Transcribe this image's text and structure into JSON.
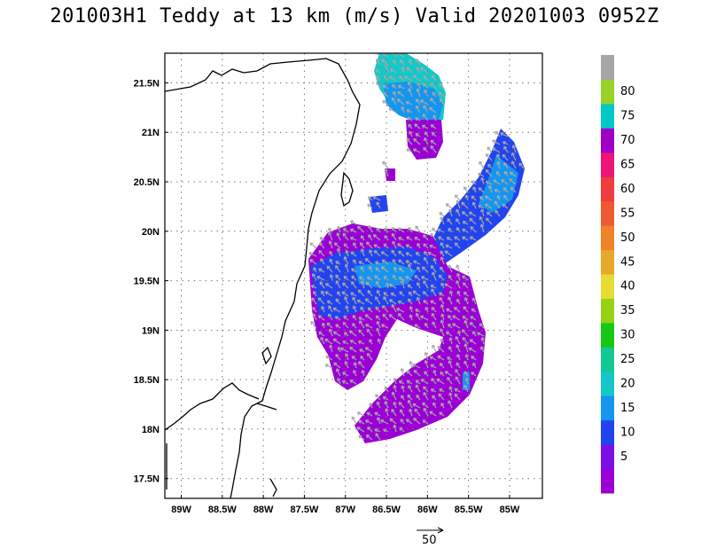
{
  "title": "201003H1 Teddy at 13 km (m/s) Valid 20201003 0952Z",
  "map": {
    "lon_range": [
      -89.2,
      -84.6
    ],
    "lat_range": [
      17.3,
      21.8
    ],
    "x_ticks": [
      "89W",
      "88.5W",
      "88W",
      "87.5W",
      "87W",
      "86.5W",
      "86W",
      "85.5W",
      "85W"
    ],
    "y_ticks": [
      "17.5N",
      "18N",
      "18.5N",
      "19N",
      "19.5N",
      "20N",
      "20.5N",
      "21N",
      "21.5N"
    ],
    "grid": "dotted",
    "wind_vector_color": "#a8a8a8",
    "coastline_color": "#000000"
  },
  "colorbar": {
    "labels": [
      "5",
      "10",
      "15",
      "20",
      "25",
      "30",
      "35",
      "40",
      "45",
      "50",
      "55",
      "60",
      "65",
      "70",
      "75",
      "80"
    ],
    "colors": [
      "#9a00d4",
      "#7a10e6",
      "#2244ee",
      "#1496f0",
      "#14c8c8",
      "#14c896",
      "#14c814",
      "#96d214",
      "#e6dc32",
      "#e6aa28",
      "#f08228",
      "#f05a32",
      "#f03c3c",
      "#ee1478",
      "#a000c8",
      "#00c8c8",
      "#96d228",
      "#a6a6a6"
    ]
  },
  "reference_vector": {
    "label": "50"
  }
}
